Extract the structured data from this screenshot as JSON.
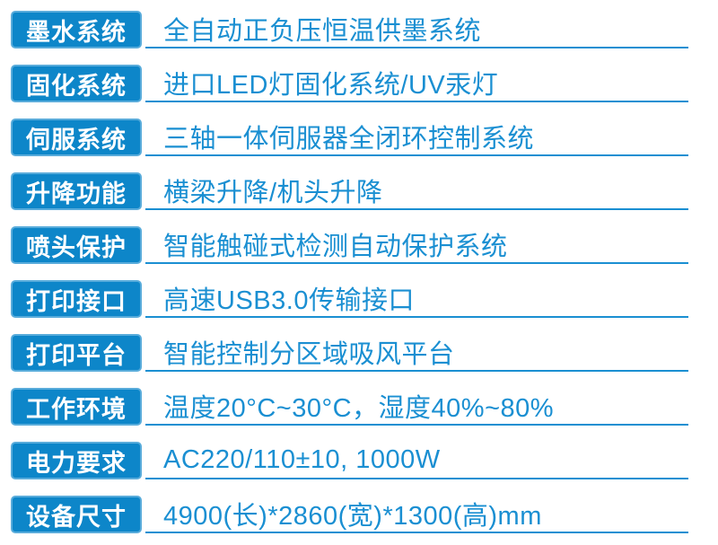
{
  "table": {
    "title": "printer-specification-table",
    "rows": [
      {
        "label": "墨水系统",
        "value": "全自动正负压恒温供墨系统"
      },
      {
        "label": "固化系统",
        "value": "进口LED灯固化系统/UV汞灯"
      },
      {
        "label": "伺服系统",
        "value": "三轴一体伺服器全闭环控制系统"
      },
      {
        "label": "升降功能",
        "value": "横梁升降/机头升降"
      },
      {
        "label": "喷头保护",
        "value": "智能触碰式检测自动保护系统"
      },
      {
        "label": "打印接口",
        "value": "高速USB3.0传输接口"
      },
      {
        "label": "打印平台",
        "value": "智能控制分区域吸风平台"
      },
      {
        "label": "工作环境",
        "value": "温度20°C~30°C，湿度40%~80%"
      },
      {
        "label": "电力要求",
        "value": "AC220/110±10, 1000W"
      },
      {
        "label": "设备尺寸",
        "value": "4900(长)*2860(宽)*1300(高)mm"
      }
    ]
  },
  "colors": {
    "label_background": "#0d86c9",
    "label_border": "#59acdb",
    "label_text": "#ffffff",
    "value_text": "#1a8fd2",
    "row_underline": "#1a8fd2",
    "page_background": "#ffffff"
  }
}
